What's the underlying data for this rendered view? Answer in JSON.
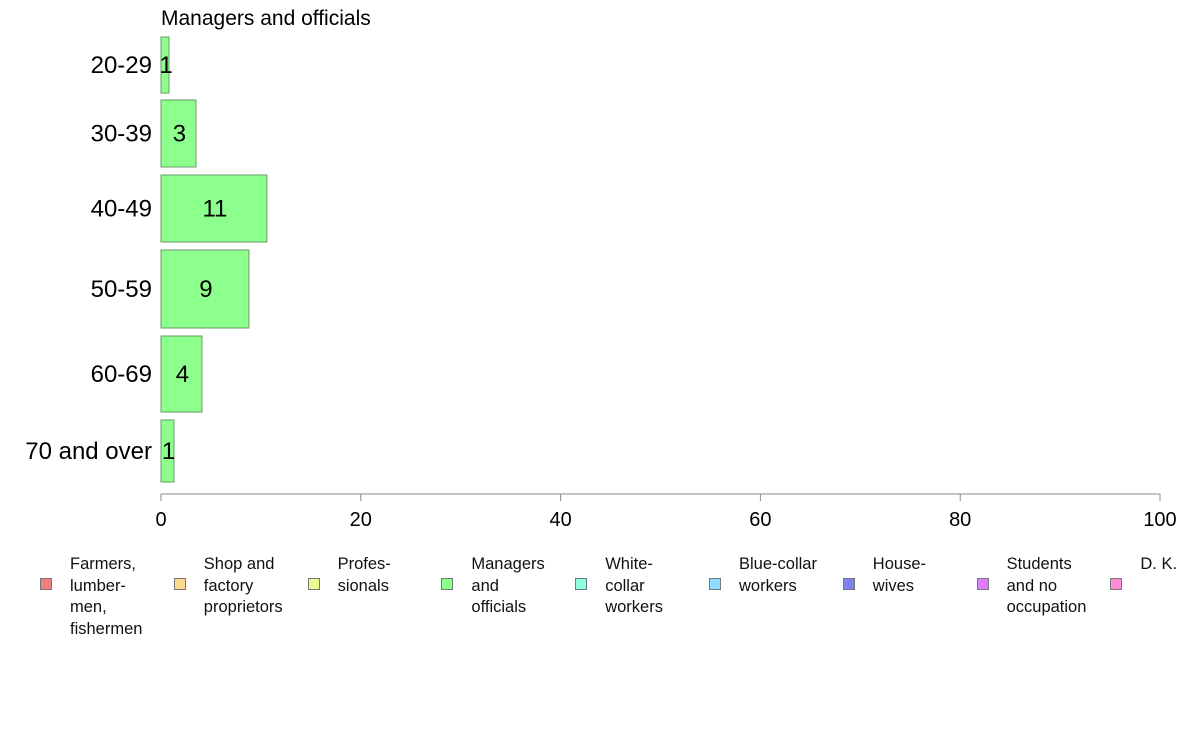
{
  "chart_data": {
    "type": "bar",
    "orientation": "horizontal",
    "title": "Managers and officials",
    "categories": [
      "20-29",
      "30-39",
      "40-49",
      "50-59",
      "60-69",
      "70 and over"
    ],
    "values": [
      1,
      3,
      11,
      9,
      4,
      1
    ],
    "bar_lengths": [
      0.8,
      3.5,
      10.6,
      8.8,
      4.1,
      1.3
    ],
    "xlim": [
      0,
      100
    ],
    "x_ticks": [
      "0",
      "20",
      "40",
      "60",
      "80",
      "100"
    ],
    "bar_color": "#8cff8c",
    "bar_edge_color": "#6a9a6a",
    "grid": false,
    "legend_position": "bottom",
    "legend": [
      {
        "label": "Farmers,\nlumber-\nmen,\nfishermen",
        "color": "#f08080"
      },
      {
        "label": "Shop and\nfactory\nproprietors",
        "color": "#ffd98c"
      },
      {
        "label": "Profes-\nsionals",
        "color": "#e6ff8c"
      },
      {
        "label": "Managers\nand\nofficials",
        "color": "#8cff8c"
      },
      {
        "label": "White-\ncollar\nworkers",
        "color": "#8cffe0"
      },
      {
        "label": "Blue-collar\nworkers",
        "color": "#8cdfff"
      },
      {
        "label": "House-\nwives",
        "color": "#8080f0"
      },
      {
        "label": "Students\nand no\noccupation",
        "color": "#e07cff"
      },
      {
        "label": "D. K.",
        "color": "#ff8cd9"
      }
    ]
  }
}
